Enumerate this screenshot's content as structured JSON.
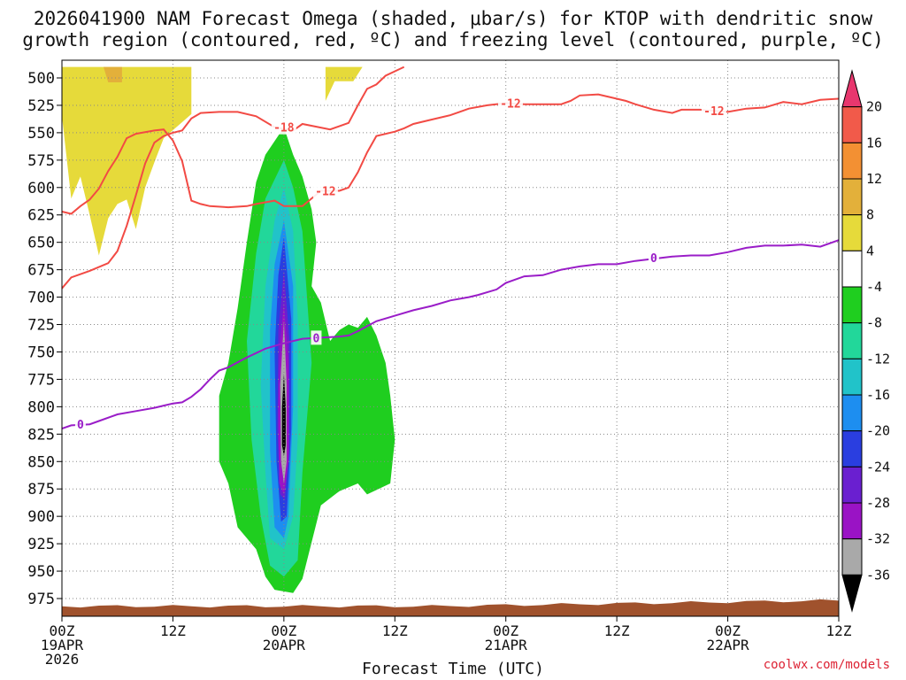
{
  "chart_data": {
    "type": "heatmap",
    "title_line1": "2026041900 NAM Forecast Omega (shaded, μbar/s) for KTOP with dendritic snow",
    "title_line2": "growth region (contoured, red, ºC) and freezing level (contoured, purple, ºC)",
    "xlabel": "Forecast Time (UTC)",
    "credit": "coolwx.com/models",
    "x_unit": "forecast hour",
    "xlim": [
      0,
      84
    ],
    "ylabel_unit": "hPa",
    "ylim": [
      990,
      490
    ],
    "y_ticks": [
      500,
      525,
      550,
      575,
      600,
      625,
      650,
      675,
      700,
      725,
      750,
      775,
      800,
      825,
      850,
      875,
      900,
      925,
      950,
      975
    ],
    "x_ticks": [
      {
        "hour": 0,
        "lines": [
          "00Z",
          "19APR",
          "2026"
        ]
      },
      {
        "hour": 12,
        "lines": [
          "12Z"
        ]
      },
      {
        "hour": 24,
        "lines": [
          "00Z",
          "20APR"
        ]
      },
      {
        "hour": 36,
        "lines": [
          "12Z"
        ]
      },
      {
        "hour": 48,
        "lines": [
          "00Z",
          "21APR"
        ]
      },
      {
        "hour": 60,
        "lines": [
          "12Z"
        ]
      },
      {
        "hour": 72,
        "lines": [
          "00Z",
          "22APR"
        ]
      },
      {
        "hour": 84,
        "lines": [
          "12Z"
        ]
      }
    ],
    "colorbar": {
      "labels": [
        "20",
        "16",
        "12",
        "8",
        "4",
        "-4",
        "-8",
        "-12",
        "-16",
        "-20",
        "-24",
        "-28",
        "-32",
        "-36"
      ],
      "colors": [
        "#e8376e",
        "#f15a4a",
        "#f39033",
        "#e3b03a",
        "#e6da3a",
        "#ffffff",
        "#1fce1f",
        "#22d79a",
        "#21c3c9",
        "#1d8ef0",
        "#2a3ee0",
        "#6a1fd0",
        "#9a13c5",
        "#a9a9a9",
        "#000000"
      ]
    },
    "series": [
      {
        "name": "-18 ºC isotherm (dendritic growth region)",
        "color": "#f24a44",
        "label": "-18",
        "label_at": [
          24.0,
          545
        ],
        "points": [
          [
            0,
            692
          ],
          [
            1,
            682
          ],
          [
            3,
            676
          ],
          [
            5,
            669
          ],
          [
            6,
            658
          ],
          [
            7,
            635
          ],
          [
            8,
            607
          ],
          [
            9,
            578
          ],
          [
            10,
            559
          ],
          [
            11,
            553
          ],
          [
            12,
            550
          ],
          [
            13,
            548
          ],
          [
            14,
            537
          ],
          [
            15,
            532
          ],
          [
            17,
            531
          ],
          [
            19,
            531
          ],
          [
            21,
            535
          ],
          [
            23,
            545
          ],
          [
            25,
            548
          ],
          [
            26,
            542
          ],
          [
            29,
            547
          ],
          [
            31,
            541
          ],
          [
            32,
            525
          ],
          [
            33,
            510
          ],
          [
            34,
            506
          ],
          [
            35,
            498
          ],
          [
            37,
            490
          ]
        ]
      },
      {
        "name": "-12 ºC isotherm (dendritic growth region)",
        "color": "#f24a44",
        "label": "-12",
        "label_at": [
          28.5,
          603
        ],
        "points": [
          [
            0,
            622
          ],
          [
            1,
            624
          ],
          [
            2,
            617
          ],
          [
            3,
            611
          ],
          [
            4,
            601
          ],
          [
            5,
            585
          ],
          [
            6,
            572
          ],
          [
            7,
            555
          ],
          [
            8,
            551
          ],
          [
            10,
            548
          ],
          [
            11,
            547
          ],
          [
            12,
            557
          ],
          [
            13,
            576
          ],
          [
            14,
            612
          ],
          [
            15,
            615
          ],
          [
            16,
            617
          ],
          [
            18,
            618
          ],
          [
            20,
            617
          ],
          [
            21,
            615
          ],
          [
            23,
            612
          ],
          [
            24,
            617
          ],
          [
            26,
            617
          ],
          [
            28,
            603
          ],
          [
            30,
            603
          ],
          [
            31,
            600
          ],
          [
            32,
            586
          ],
          [
            33,
            568
          ],
          [
            34,
            553
          ],
          [
            36,
            549
          ],
          [
            37,
            546
          ],
          [
            38,
            542
          ],
          [
            40,
            538
          ],
          [
            42,
            534
          ],
          [
            44,
            528
          ],
          [
            46,
            525
          ],
          [
            48,
            523
          ],
          [
            50,
            524
          ],
          [
            52,
            524
          ],
          [
            54,
            524
          ],
          [
            55,
            521
          ],
          [
            56,
            516
          ],
          [
            58,
            515
          ],
          [
            60,
            519
          ],
          [
            61,
            521
          ],
          [
            62,
            524
          ],
          [
            64,
            529
          ],
          [
            66,
            532
          ],
          [
            67,
            529
          ],
          [
            69,
            529
          ],
          [
            72,
            531
          ],
          [
            74,
            528
          ],
          [
            76,
            527
          ],
          [
            78,
            522
          ],
          [
            80,
            524
          ],
          [
            82,
            520
          ],
          [
            84,
            519
          ]
        ]
      },
      {
        "name": "-12 ºC isotherm (east)",
        "color": "#f24a44",
        "label": "-12",
        "label_at": [
          48.5,
          523
        ],
        "points": []
      },
      {
        "name": "-12 ºC isotherm (far east)",
        "color": "#f24a44",
        "label": "-12",
        "label_at": [
          70.5,
          530
        ],
        "points": []
      },
      {
        "name": "0 ºC freezing level",
        "color": "#9a1dc8",
        "label": "0",
        "label_at": [
          2.0,
          816
        ],
        "points": [
          [
            0,
            820
          ],
          [
            1,
            817
          ],
          [
            3,
            816
          ],
          [
            4,
            813
          ],
          [
            6,
            807
          ],
          [
            8,
            804
          ],
          [
            10,
            801
          ],
          [
            11,
            799
          ],
          [
            12,
            797
          ],
          [
            13,
            796
          ],
          [
            14,
            791
          ],
          [
            15,
            784
          ],
          [
            16,
            775
          ],
          [
            17,
            767
          ],
          [
            18,
            764
          ],
          [
            20,
            755
          ],
          [
            22,
            747
          ],
          [
            24,
            742
          ],
          [
            26,
            738
          ],
          [
            28,
            737
          ],
          [
            30,
            736
          ],
          [
            31,
            735
          ],
          [
            32,
            731
          ],
          [
            34,
            722
          ],
          [
            36,
            717
          ],
          [
            38,
            712
          ],
          [
            40,
            708
          ],
          [
            42,
            703
          ],
          [
            44,
            700
          ],
          [
            45,
            698
          ],
          [
            47,
            693
          ],
          [
            48,
            687
          ],
          [
            50,
            681
          ],
          [
            52,
            680
          ],
          [
            54,
            675
          ],
          [
            56,
            672
          ],
          [
            58,
            670
          ],
          [
            60,
            670
          ],
          [
            62,
            667
          ],
          [
            64,
            665
          ],
          [
            66,
            663
          ],
          [
            68,
            662
          ],
          [
            70,
            662
          ],
          [
            72,
            659
          ],
          [
            74,
            655
          ],
          [
            76,
            653
          ],
          [
            78,
            653
          ],
          [
            80,
            652
          ],
          [
            82,
            654
          ],
          [
            84,
            648
          ]
        ]
      },
      {
        "name": "0 ºC label east",
        "color": "#9a1dc8",
        "label": "0",
        "label_at": [
          64.0,
          664
        ],
        "points": []
      },
      {
        "name": "0 ºC label mid",
        "color": "#9a1dc8",
        "label": "0",
        "label_at": [
          27.5,
          737
        ],
        "points": []
      }
    ],
    "omega_regions": [
      {
        "level": "4 to 8",
        "color": "#e6da3a",
        "polygon": [
          [
            0,
            490
          ],
          [
            14,
            490
          ],
          [
            14,
            533
          ],
          [
            11,
            555
          ],
          [
            10,
            577
          ],
          [
            9,
            600
          ],
          [
            8,
            638
          ],
          [
            7,
            611
          ],
          [
            6,
            615
          ],
          [
            5,
            628
          ],
          [
            4,
            662
          ],
          [
            3,
            625
          ],
          [
            2,
            590
          ],
          [
            1,
            610
          ],
          [
            0,
            535
          ]
        ]
      },
      {
        "level": "4 to 8",
        "color": "#e6da3a",
        "polygon": [
          [
            28.5,
            490
          ],
          [
            32.5,
            490
          ],
          [
            31.5,
            503
          ],
          [
            29.5,
            503
          ],
          [
            28.5,
            521
          ]
        ]
      },
      {
        "level": "8 to 12",
        "color": "#e3b03a",
        "polygon": [
          [
            4.5,
            490
          ],
          [
            6.5,
            490
          ],
          [
            6.5,
            504
          ],
          [
            5,
            504
          ]
        ]
      },
      {
        "level": "-4 to -8",
        "color": "#1fce1f",
        "polygon": [
          [
            24,
            545
          ],
          [
            25,
            570
          ],
          [
            26,
            590
          ],
          [
            27,
            620
          ],
          [
            27.5,
            650
          ],
          [
            27,
            690
          ],
          [
            28,
            705
          ],
          [
            29,
            740
          ],
          [
            30,
            730
          ],
          [
            31,
            725
          ],
          [
            32,
            728
          ],
          [
            33,
            718
          ],
          [
            34,
            735
          ],
          [
            35,
            760
          ],
          [
            35.5,
            790
          ],
          [
            36,
            830
          ],
          [
            35.5,
            870
          ],
          [
            33,
            880
          ],
          [
            32,
            870
          ],
          [
            30,
            877
          ],
          [
            28,
            890
          ],
          [
            26,
            957
          ],
          [
            25,
            970
          ],
          [
            23,
            967
          ],
          [
            22,
            955
          ],
          [
            21,
            930
          ],
          [
            19,
            910
          ],
          [
            18,
            870
          ],
          [
            17,
            850
          ],
          [
            17,
            790
          ],
          [
            18,
            760
          ],
          [
            19,
            710
          ],
          [
            20,
            650
          ],
          [
            21,
            595
          ],
          [
            22,
            570
          ]
        ]
      },
      {
        "level": "-8 to -12",
        "color": "#22d79a",
        "polygon": [
          [
            24,
            575
          ],
          [
            25,
            600
          ],
          [
            26,
            640
          ],
          [
            26.5,
            700
          ],
          [
            27,
            760
          ],
          [
            26,
            860
          ],
          [
            25.5,
            940
          ],
          [
            24,
            955
          ],
          [
            22.5,
            945
          ],
          [
            21.5,
            900
          ],
          [
            20.5,
            830
          ],
          [
            20,
            740
          ],
          [
            21,
            660
          ],
          [
            22,
            610
          ]
        ]
      },
      {
        "level": "-12 to -16",
        "color": "#21c3c9",
        "polygon": [
          [
            24,
            600
          ],
          [
            25,
            640
          ],
          [
            25.5,
            720
          ],
          [
            25.5,
            830
          ],
          [
            25,
            900
          ],
          [
            24,
            930
          ],
          [
            22.5,
            920
          ],
          [
            22,
            860
          ],
          [
            21.5,
            780
          ],
          [
            22,
            690
          ],
          [
            23,
            630
          ]
        ]
      },
      {
        "level": "-16 to -20",
        "color": "#1d8ef0",
        "polygon": [
          [
            24,
            630
          ],
          [
            25,
            690
          ],
          [
            25,
            800
          ],
          [
            24.5,
            900
          ],
          [
            24,
            920
          ],
          [
            23,
            910
          ],
          [
            22.5,
            840
          ],
          [
            22.5,
            730
          ],
          [
            23,
            670
          ]
        ]
      },
      {
        "level": "-20 to -24",
        "color": "#2a3ee0",
        "polygon": [
          [
            24,
            645
          ],
          [
            24.8,
            720
          ],
          [
            24.8,
            820
          ],
          [
            24.3,
            900
          ],
          [
            23.7,
            905
          ],
          [
            23.2,
            850
          ],
          [
            23,
            750
          ],
          [
            23.4,
            680
          ]
        ]
      },
      {
        "level": "-24 to -28",
        "color": "#6a1fd0",
        "polygon": [
          [
            24,
            675
          ],
          [
            24.6,
            740
          ],
          [
            24.6,
            840
          ],
          [
            24.1,
            885
          ],
          [
            23.6,
            880
          ],
          [
            23.3,
            820
          ],
          [
            23.4,
            730
          ]
        ]
      },
      {
        "level": "-28 to -32",
        "color": "#9a13c5",
        "polygon": [
          [
            24,
            705
          ],
          [
            24.5,
            760
          ],
          [
            24.5,
            850
          ],
          [
            24,
            880
          ],
          [
            23.5,
            870
          ],
          [
            23.4,
            800
          ],
          [
            23.6,
            740
          ]
        ]
      },
      {
        "level": "-32 to -36",
        "color": "#a9a9a9",
        "polygon": [
          [
            24,
            722
          ],
          [
            24.3,
            780
          ],
          [
            24.3,
            850
          ],
          [
            24,
            870
          ],
          [
            23.7,
            850
          ],
          [
            23.6,
            780
          ]
        ]
      },
      {
        "level": "< -36",
        "color": "#000000",
        "polygon": [
          [
            24,
            770
          ],
          [
            24.2,
            800
          ],
          [
            24.2,
            835
          ],
          [
            24,
            845
          ],
          [
            23.8,
            835
          ],
          [
            23.8,
            800
          ]
        ]
      }
    ],
    "terrain_color": "#a0522d"
  }
}
